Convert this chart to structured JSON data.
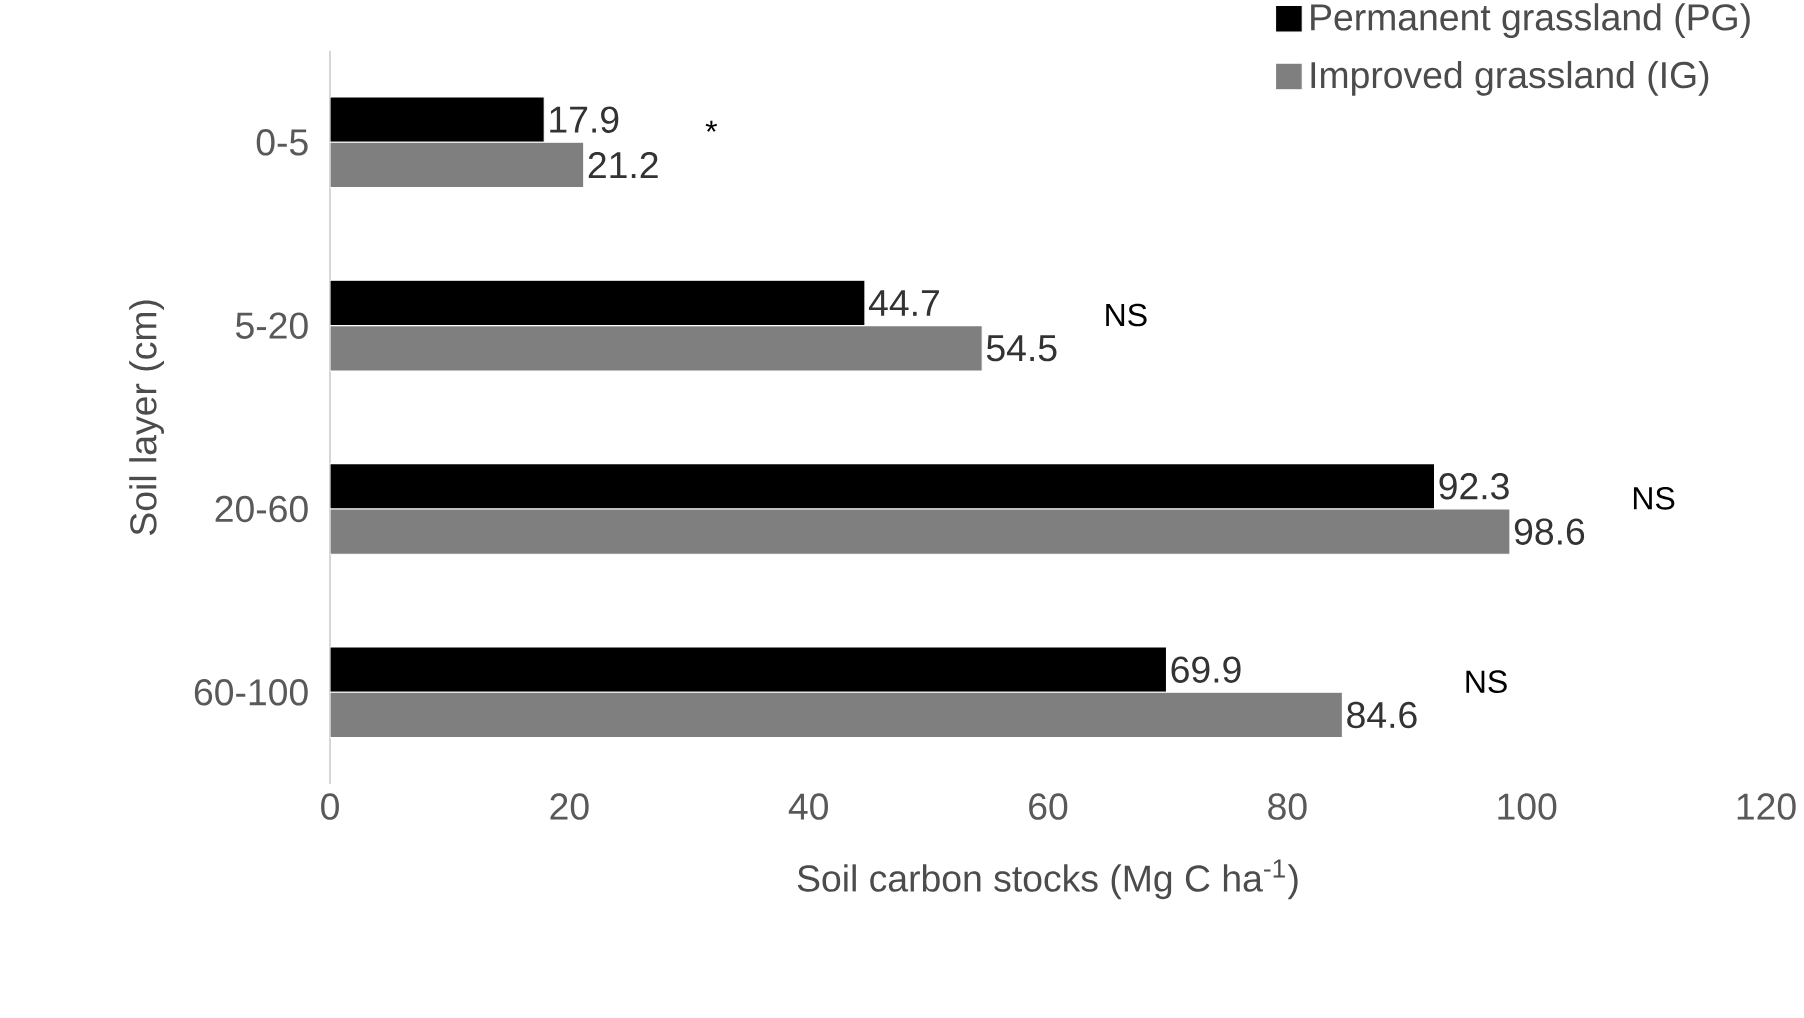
{
  "chart_data": {
    "type": "bar",
    "orientation": "horizontal",
    "xlabel": "Soil carbon stocks (Mg C ha$^{-1}$)",
    "ylabel": "Soil layer (cm)",
    "categories": [
      "0-5",
      "5-20",
      "20-60",
      "60-100"
    ],
    "series": [
      {
        "name": "Permanent grassland (PG)",
        "color": "#000000",
        "values": [
          17.9,
          44.7,
          92.3,
          69.9
        ]
      },
      {
        "name": "Improved grassland (IG)",
        "color": "#7f7f7f",
        "values": [
          21.2,
          54.5,
          98.6,
          84.6
        ]
      }
    ],
    "xlim": [
      0,
      120
    ],
    "xticks": [
      0,
      20,
      40,
      60,
      80,
      100,
      120
    ],
    "data_labels": true,
    "legend": "top right",
    "grid": false,
    "annotations": [
      "*",
      "NS",
      "NS",
      "NS"
    ]
  }
}
